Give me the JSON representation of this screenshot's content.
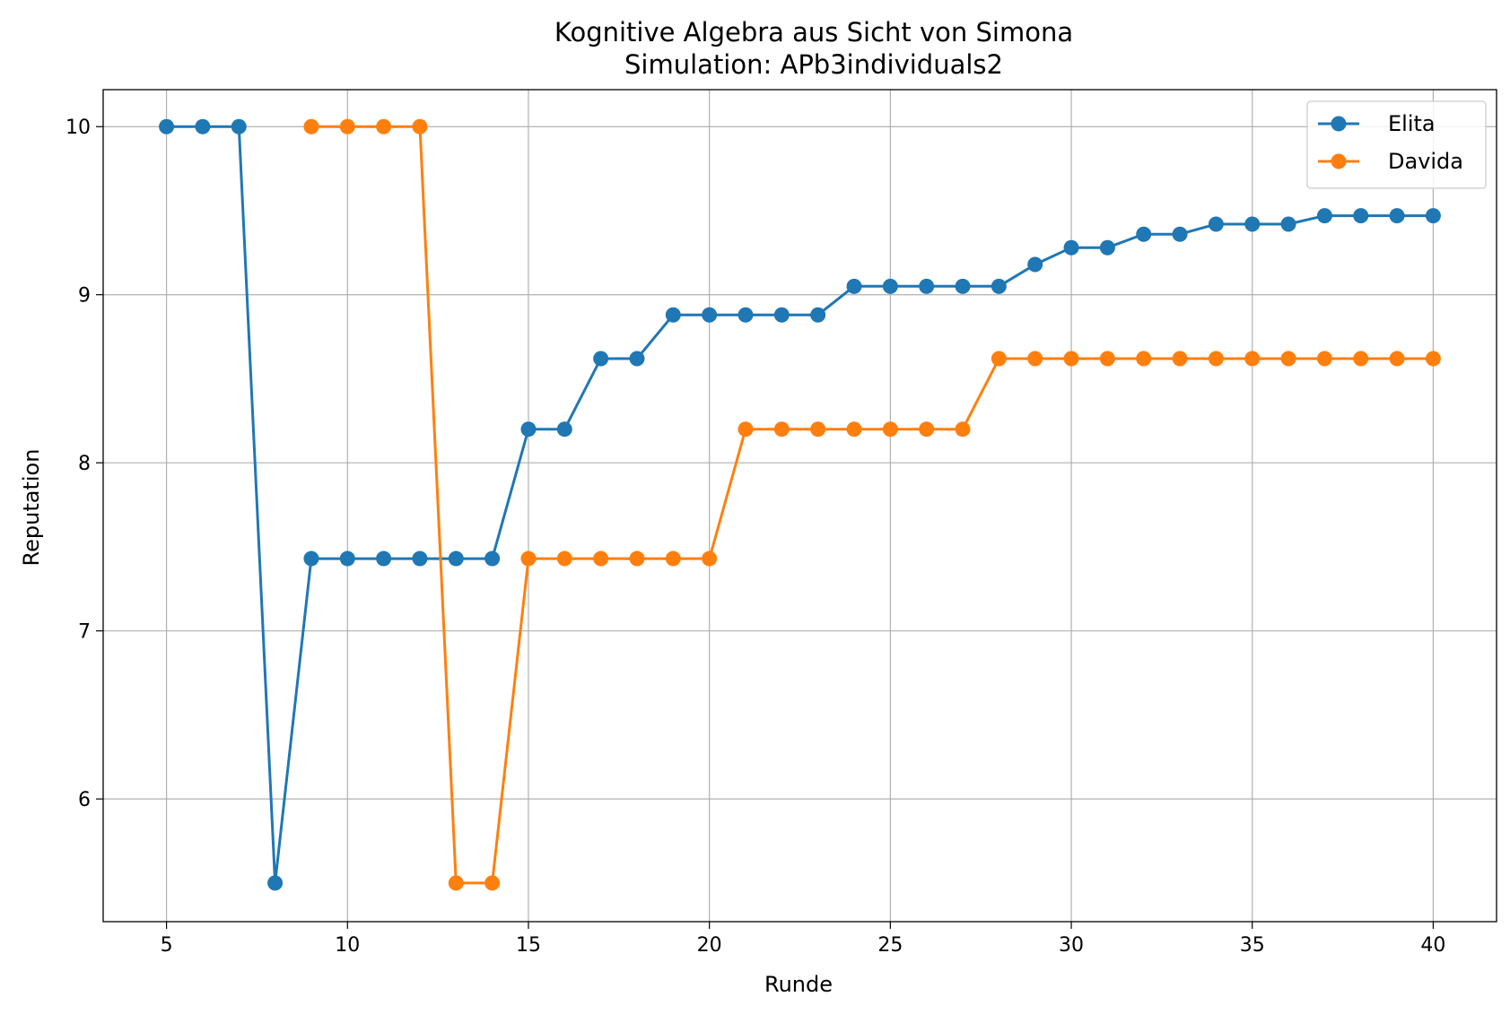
{
  "chart_data": {
    "type": "line",
    "title": "Kognitive Algebra aus Sicht von Simona",
    "subtitle": "Simulation: APb3individuals2",
    "xlabel": "Runde",
    "ylabel": "Reputation",
    "xlim": [
      3.25,
      41.75
    ],
    "ylim": [
      5.27,
      10.22
    ],
    "xticks": [
      5,
      10,
      15,
      20,
      25,
      30,
      35,
      40
    ],
    "yticks": [
      6,
      7,
      8,
      9,
      10
    ],
    "grid": true,
    "legend_position": "top-right",
    "series": [
      {
        "name": "Elita",
        "color": "#1f77b4",
        "x": [
          5,
          6,
          7,
          8,
          9,
          10,
          11,
          12,
          13,
          14,
          15,
          16,
          17,
          18,
          19,
          20,
          21,
          22,
          23,
          24,
          25,
          26,
          27,
          28,
          29,
          30,
          31,
          32,
          33,
          34,
          35,
          36,
          37,
          38,
          39,
          40
        ],
        "y": [
          10,
          10,
          10,
          5.5,
          7.43,
          7.43,
          7.43,
          7.43,
          7.43,
          7.43,
          8.2,
          8.2,
          8.62,
          8.62,
          8.88,
          8.88,
          8.88,
          8.88,
          8.88,
          9.05,
          9.05,
          9.05,
          9.05,
          9.05,
          9.18,
          9.28,
          9.28,
          9.36,
          9.36,
          9.42,
          9.42,
          9.42,
          9.47,
          9.47,
          9.47,
          9.47
        ]
      },
      {
        "name": "Davida",
        "color": "#ff7f0e",
        "x": [
          9,
          10,
          11,
          12,
          13,
          14,
          15,
          16,
          17,
          18,
          19,
          20,
          21,
          22,
          23,
          24,
          25,
          26,
          27,
          28,
          29,
          30,
          31,
          32,
          33,
          34,
          35,
          36,
          37,
          38,
          39,
          40
        ],
        "y": [
          10,
          10,
          10,
          10,
          5.5,
          5.5,
          7.43,
          7.43,
          7.43,
          7.43,
          7.43,
          7.43,
          8.2,
          8.2,
          8.2,
          8.2,
          8.2,
          8.2,
          8.2,
          8.62,
          8.62,
          8.62,
          8.62,
          8.62,
          8.62,
          8.62,
          8.62,
          8.62,
          8.62,
          8.62,
          8.62,
          8.62
        ]
      }
    ]
  }
}
